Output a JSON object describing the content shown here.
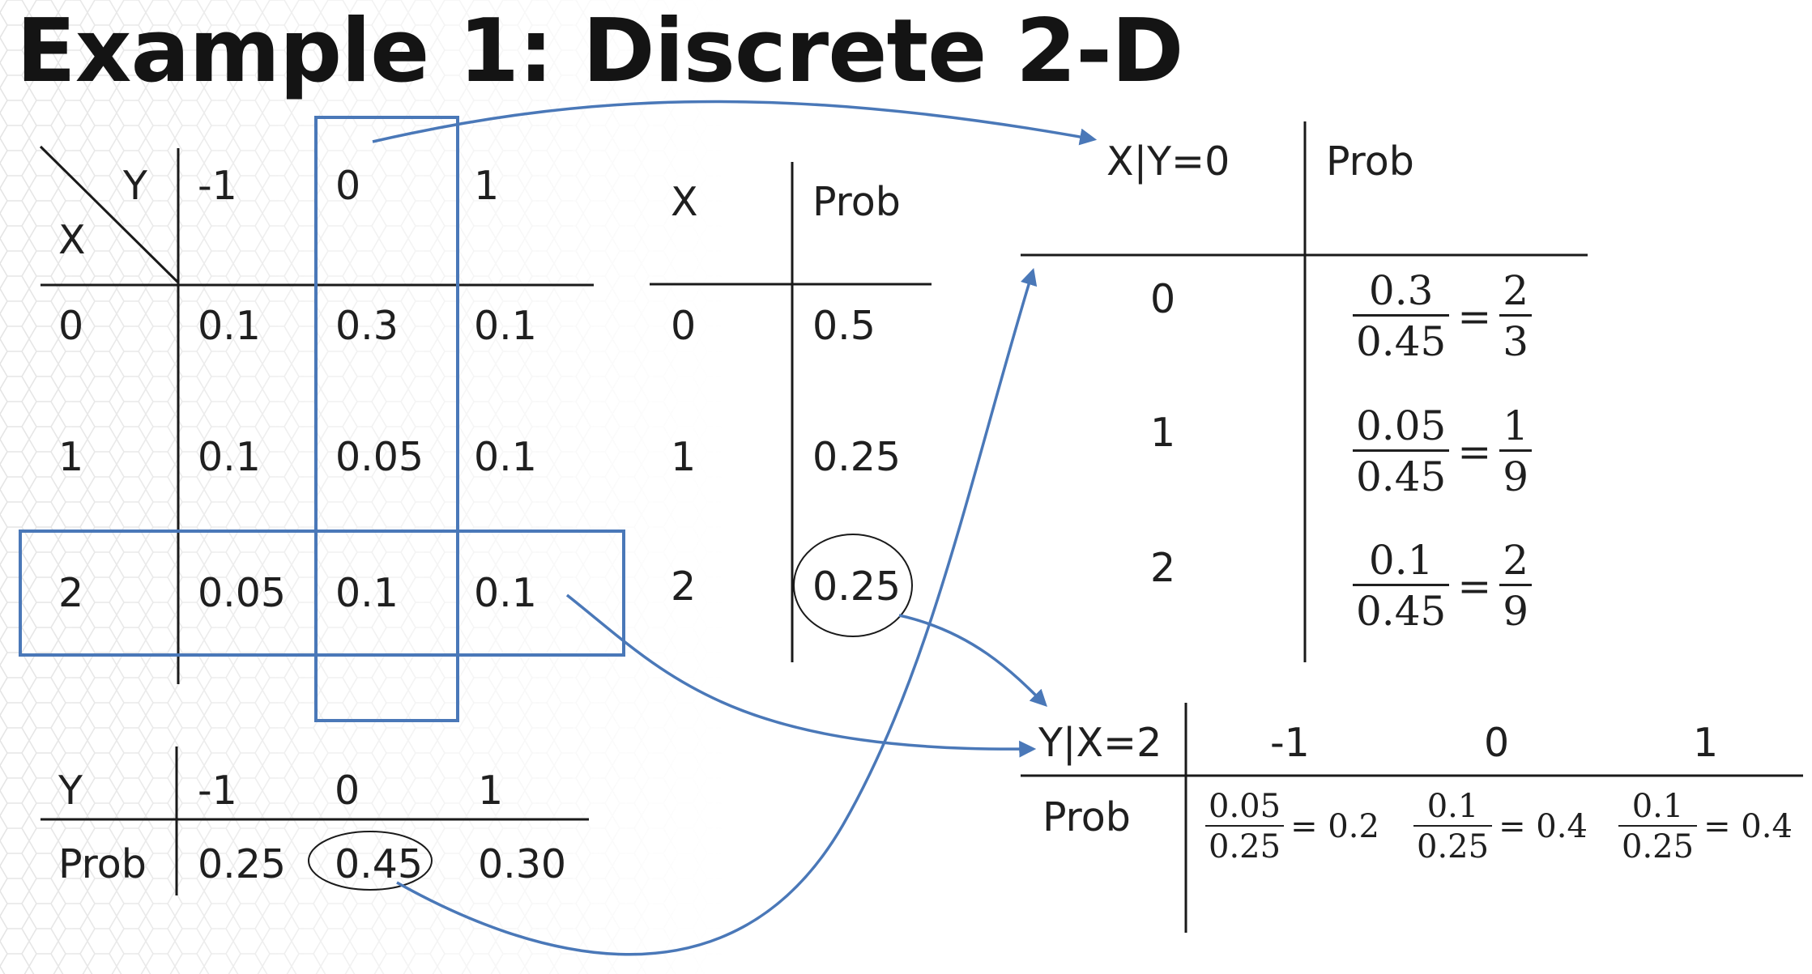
{
  "title": "Example 1: Discrete 2-D",
  "joint": {
    "corner_y": "Y",
    "corner_x": "X",
    "col_headers": [
      "-1",
      "0",
      "1"
    ],
    "rows": [
      {
        "x": "0",
        "cells": [
          "0.1",
          "0.3",
          "0.1"
        ]
      },
      {
        "x": "1",
        "cells": [
          "0.1",
          "0.05",
          "0.1"
        ]
      },
      {
        "x": "2",
        "cells": [
          "0.05",
          "0.1",
          "0.1"
        ]
      }
    ]
  },
  "marginal_x": {
    "header": [
      "X",
      "Prob"
    ],
    "rows": [
      {
        "x": "0",
        "p": "0.5"
      },
      {
        "x": "1",
        "p": "0.25"
      },
      {
        "x": "2",
        "p": "0.25"
      }
    ]
  },
  "marginal_y": {
    "row_label_y": "Y",
    "y_values": [
      "-1",
      "0",
      "1"
    ],
    "row_label_prob": "Prob",
    "probs": [
      "0.25",
      "0.45",
      "0.30"
    ]
  },
  "cond_x_given_y0": {
    "header": [
      "X|Y=0",
      "Prob"
    ],
    "rows": [
      {
        "x": "0",
        "num": "0.3",
        "den": "0.45",
        "eq": "=",
        "rnum": "2",
        "rden": "3"
      },
      {
        "x": "1",
        "num": "0.05",
        "den": "0.45",
        "eq": "=",
        "rnum": "1",
        "rden": "9"
      },
      {
        "x": "2",
        "num": "0.1",
        "den": "0.45",
        "eq": "=",
        "rnum": "2",
        "rden": "9"
      }
    ]
  },
  "cond_y_given_x2": {
    "header": [
      "Y|X=2",
      "-1",
      "0",
      "1"
    ],
    "row_label": "Prob",
    "cells": [
      {
        "num": "0.05",
        "den": "0.25",
        "result": "= 0.2"
      },
      {
        "num": "0.1",
        "den": "0.25",
        "result": "= 0.4"
      },
      {
        "num": "0.1",
        "den": "0.25",
        "result": "= 0.4"
      }
    ]
  },
  "colors": {
    "highlight_blue": "#4a78b8",
    "arrow_blue": "#4a78b8",
    "line": "#1a1a1a",
    "pattern": "#c8c8c8"
  }
}
